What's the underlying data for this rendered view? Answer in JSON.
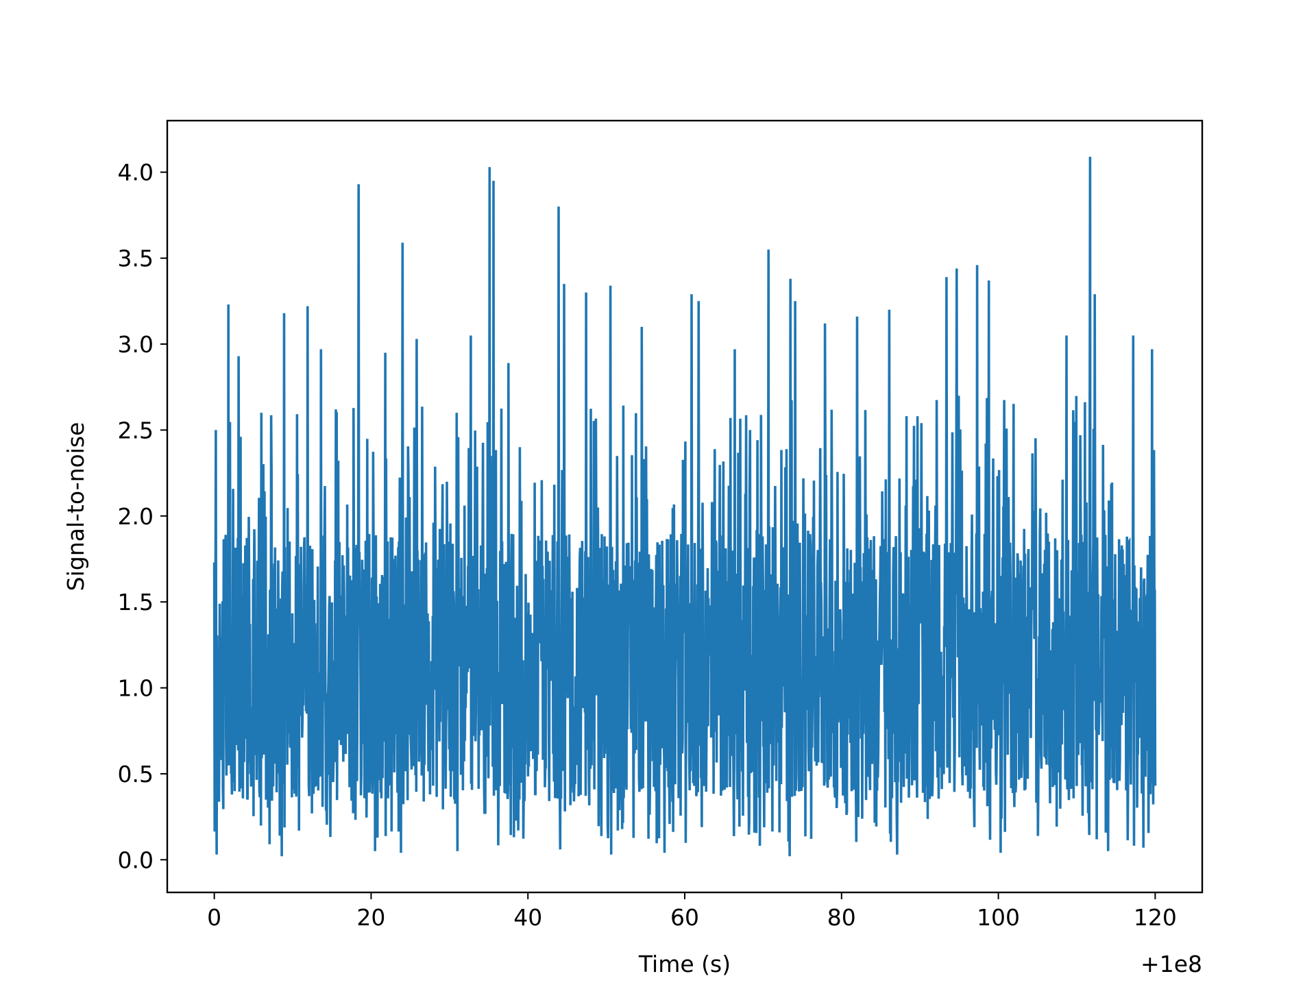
{
  "chart_data": {
    "type": "line",
    "title": "",
    "xlabel": "Time (s)",
    "ylabel": "Signal-to-noise",
    "x_offset_label": "+1e8",
    "xlim": [
      -6,
      126
    ],
    "ylim": [
      -0.19,
      4.3
    ],
    "x_ticks": [
      0,
      20,
      40,
      60,
      80,
      100,
      120
    ],
    "x_tick_labels": [
      "0",
      "20",
      "40",
      "60",
      "80",
      "100",
      "120"
    ],
    "y_ticks": [
      0.0,
      0.5,
      1.0,
      1.5,
      2.0,
      2.5,
      3.0,
      3.5,
      4.0
    ],
    "y_tick_labels": [
      "0.0",
      "0.5",
      "1.0",
      "1.5",
      "2.0",
      "2.5",
      "3.0",
      "3.5",
      "4.0"
    ],
    "grid": false,
    "series": [
      {
        "color": "#1f77b4",
        "x_range": [
          0,
          120
        ],
        "sample_count": 2400,
        "peaks": [
          [
            0.2,
            2.5
          ],
          [
            1.8,
            3.23
          ],
          [
            3.1,
            2.93
          ],
          [
            6.0,
            2.6
          ],
          [
            8.9,
            3.18
          ],
          [
            11.9,
            3.22
          ],
          [
            13.6,
            2.97
          ],
          [
            15.5,
            2.62
          ],
          [
            18.4,
            3.93
          ],
          [
            21.8,
            2.95
          ],
          [
            24.0,
            3.59
          ],
          [
            25.8,
            3.03
          ],
          [
            30.9,
            2.6
          ],
          [
            32.7,
            3.05
          ],
          [
            35.1,
            4.03
          ],
          [
            35.6,
            3.95
          ],
          [
            37.5,
            2.89
          ],
          [
            43.9,
            3.8
          ],
          [
            44.6,
            3.35
          ],
          [
            47.4,
            3.3
          ],
          [
            50.5,
            3.34
          ],
          [
            54.5,
            3.1
          ],
          [
            60.9,
            3.29
          ],
          [
            61.8,
            3.25
          ],
          [
            66.4,
            2.97
          ],
          [
            70.7,
            3.55
          ],
          [
            73.5,
            3.38
          ],
          [
            74.1,
            3.25
          ],
          [
            77.9,
            3.12
          ],
          [
            82.0,
            3.16
          ],
          [
            86.1,
            3.2
          ],
          [
            93.4,
            3.39
          ],
          [
            94.7,
            3.44
          ],
          [
            97.3,
            3.46
          ],
          [
            98.8,
            3.37
          ],
          [
            108.7,
            3.05
          ],
          [
            111.7,
            4.09
          ],
          [
            112.3,
            3.29
          ],
          [
            117.2,
            3.05
          ],
          [
            119.6,
            2.97
          ]
        ],
        "troughs": [
          [
            0.3,
            0.03
          ],
          [
            8.6,
            0.02
          ],
          [
            20.5,
            0.05
          ],
          [
            23.8,
            0.04
          ],
          [
            31.0,
            0.05
          ],
          [
            44.1,
            0.06
          ],
          [
            50.6,
            0.03
          ],
          [
            57.4,
            0.04
          ],
          [
            73.4,
            0.02
          ],
          [
            87.1,
            0.03
          ],
          [
            100.3,
            0.04
          ],
          [
            114.0,
            0.05
          ],
          [
            118.5,
            0.07
          ]
        ]
      }
    ]
  }
}
